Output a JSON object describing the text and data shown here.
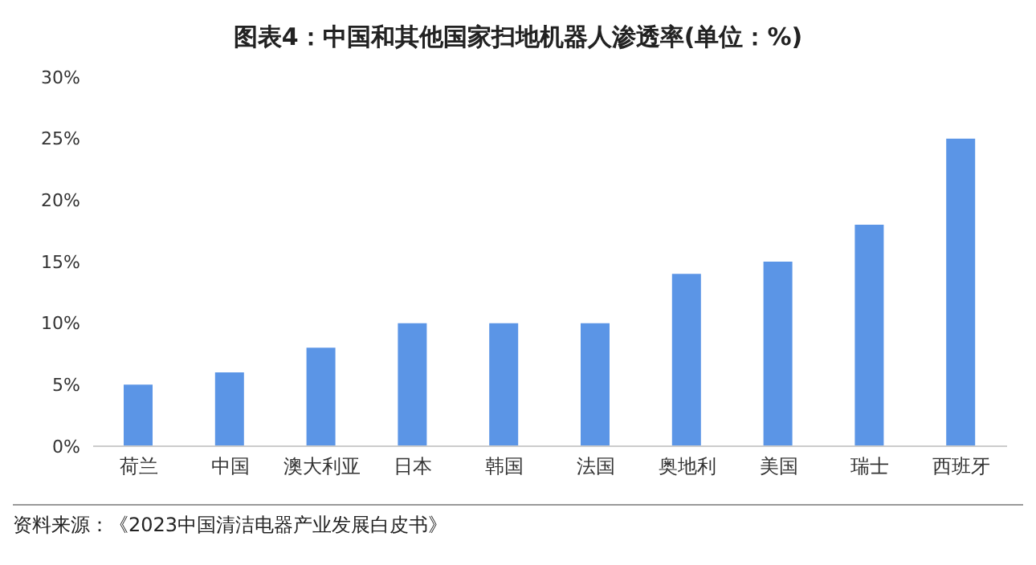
{
  "chart_data": {
    "type": "bar",
    "title": "图表4：中国和其他国家扫地机器人渗透率(单位：%)",
    "categories": [
      "荷兰",
      "中国",
      "澳大利亚",
      "日本",
      "韩国",
      "法国",
      "奥地利",
      "美国",
      "瑞士",
      "西班牙"
    ],
    "values": [
      5,
      6,
      8,
      10,
      10,
      10,
      14,
      15,
      18,
      25
    ],
    "color": "#5b95e6",
    "ylim": [
      0,
      30
    ],
    "yticks": [
      {
        "value": 0,
        "label": "0%"
      },
      {
        "value": 5,
        "label": "5%"
      },
      {
        "value": 10,
        "label": "10%"
      },
      {
        "value": 15,
        "label": "15%"
      },
      {
        "value": 20,
        "label": "20%"
      },
      {
        "value": 25,
        "label": "25%"
      },
      {
        "value": 30,
        "label": "30%"
      }
    ],
    "grid": false,
    "annotations": [
      "资料来源：《2023中国清洁电器产业发展白皮书》"
    ]
  }
}
